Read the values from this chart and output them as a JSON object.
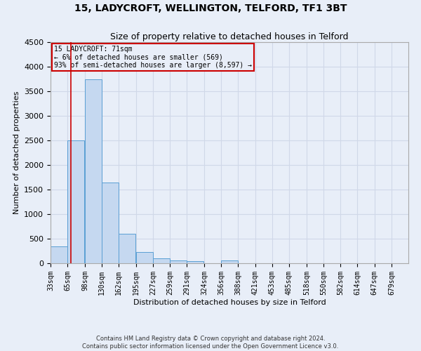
{
  "title": "15, LADYCROFT, WELLINGTON, TELFORD, TF1 3BT",
  "subtitle": "Size of property relative to detached houses in Telford",
  "xlabel": "Distribution of detached houses by size in Telford",
  "ylabel": "Number of detached properties",
  "footer_line1": "Contains HM Land Registry data © Crown copyright and database right 2024.",
  "footer_line2": "Contains public sector information licensed under the Open Government Licence v3.0.",
  "bin_edges": [
    33,
    65,
    98,
    130,
    162,
    195,
    227,
    259,
    291,
    324,
    356,
    388,
    421,
    453,
    485,
    518,
    550,
    582,
    614,
    647,
    679
  ],
  "bar_heights": [
    350,
    2500,
    3750,
    1650,
    600,
    225,
    105,
    60,
    40,
    0,
    60,
    0,
    0,
    0,
    0,
    0,
    0,
    0,
    0,
    0
  ],
  "bar_color": "#c5d8f0",
  "bar_edge_color": "#5a9fd4",
  "property_size": 71,
  "property_line_color": "#cc0000",
  "ylim": [
    0,
    4500
  ],
  "yticks": [
    0,
    500,
    1000,
    1500,
    2000,
    2500,
    3000,
    3500,
    4000,
    4500
  ],
  "annotation_text_line1": "15 LADYCROFT: 71sqm",
  "annotation_text_line2": "← 6% of detached houses are smaller (569)",
  "annotation_text_line3": "93% of semi-detached houses are larger (8,597) →",
  "annotation_box_color": "#cc0000",
  "grid_color": "#d0d8e8",
  "background_color": "#e8eef8",
  "title_fontsize": 10,
  "subtitle_fontsize": 9,
  "xlabel_fontsize": 8,
  "ylabel_fontsize": 8,
  "footer_fontsize": 6,
  "tick_fontsize": 7,
  "ytick_fontsize": 8
}
